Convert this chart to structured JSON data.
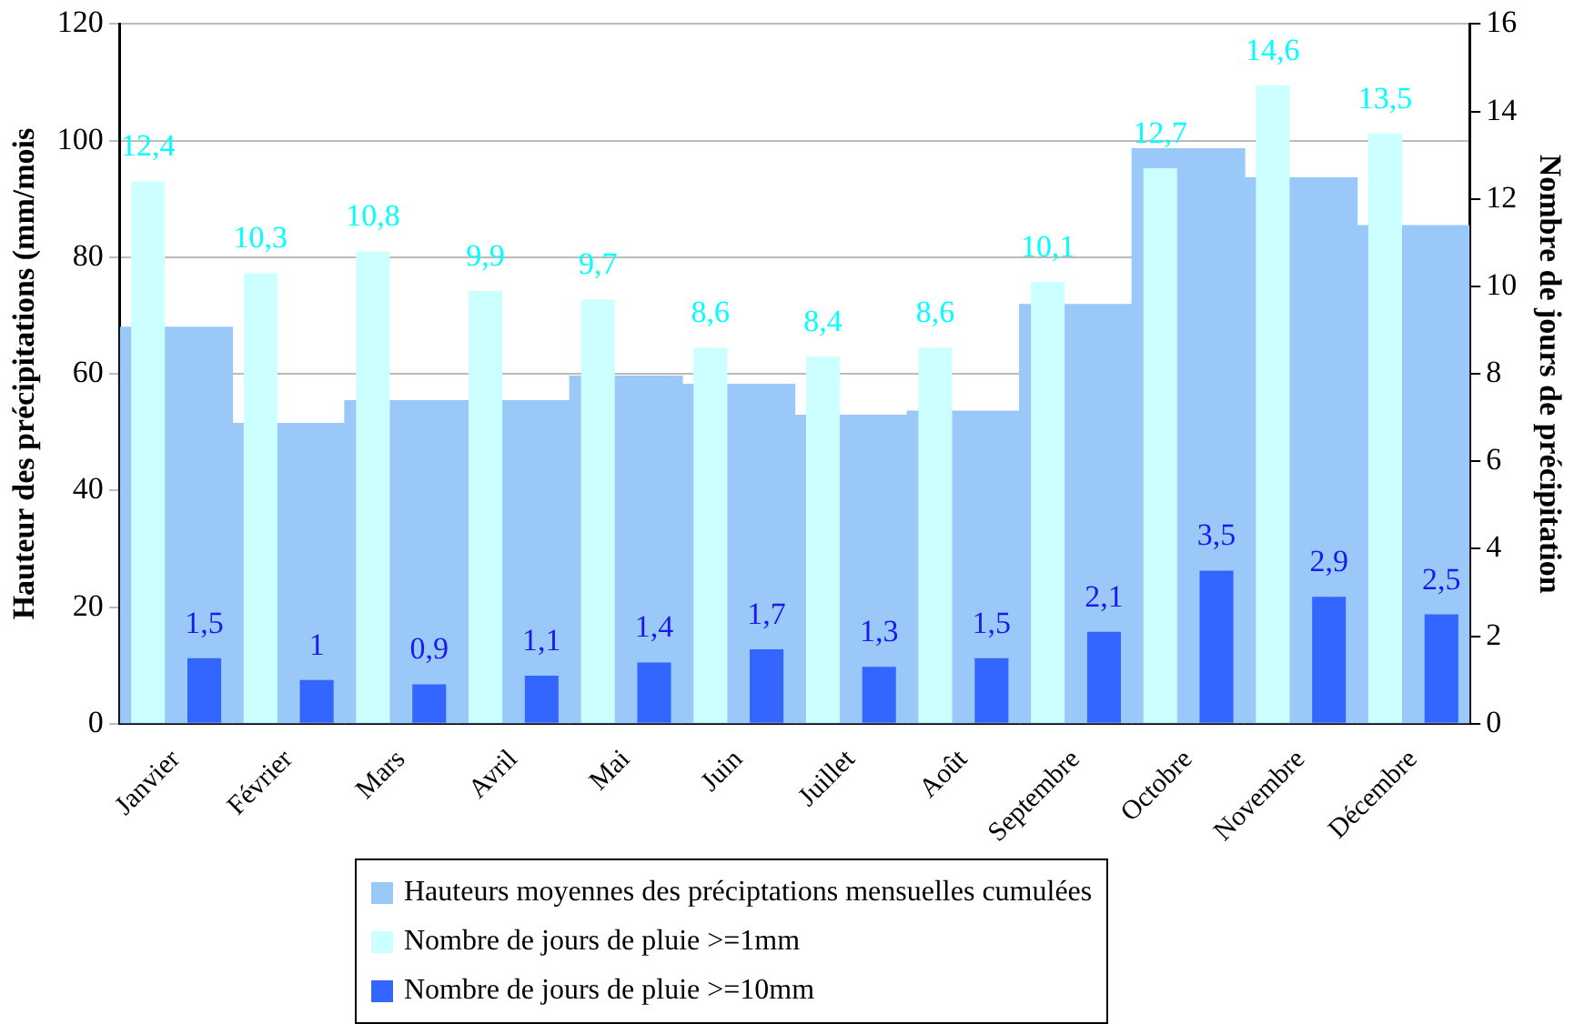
{
  "chart_data": {
    "type": "bar",
    "ylabel": "Hauteur des précipitations (mm/mois",
    "y2label": "Nombre de jours de précipitation",
    "categories": [
      "Janvier",
      "Février",
      "Mars",
      "Avril",
      "Mai",
      "Juin",
      "Juillet",
      "Août",
      "Septembre",
      "Octobre",
      "Novembre",
      "Décembre"
    ],
    "series": [
      {
        "name": "Hauteurs moyennes des préciptations mensuelles cumulées",
        "color": "#99c8f9",
        "values": [
          68,
          51.5,
          55.4,
          55.4,
          59.6,
          58.2,
          52.9,
          53.6,
          71.9,
          98.6,
          93.6,
          85.4
        ]
      },
      {
        "name": "Nombre de jours de pluie >=1mm",
        "color": "#ccffff",
        "axis": "y2",
        "values": [
          12.4,
          10.3,
          10.8,
          9.9,
          9.7,
          8.6,
          8.4,
          8.6,
          10.1,
          12.7,
          14.6,
          13.5
        ],
        "value_labels": [
          "12,4",
          "10,3",
          "10,8",
          "9,9",
          "9,7",
          "8,6",
          "8,4",
          "8,6",
          "10,1",
          "12,7",
          "14,6",
          "13,5"
        ]
      },
      {
        "name": "Nombre de jours de pluie >=10mm",
        "color": "#3366ff",
        "axis": "y2",
        "values": [
          1.5,
          1,
          0.9,
          1.1,
          1.4,
          1.7,
          1.3,
          1.5,
          2.1,
          3.5,
          2.9,
          2.5
        ],
        "value_labels": [
          "1,5",
          "1",
          "0,9",
          "1,1",
          "1,4",
          "1,7",
          "1,3",
          "1,5",
          "2,1",
          "3,5",
          "2,9",
          "2,5"
        ]
      }
    ],
    "ylim": [
      0,
      120
    ],
    "yticks": [
      0,
      20,
      40,
      60,
      80,
      100,
      120
    ],
    "y2lim": [
      0,
      16
    ],
    "y2ticks": [
      0,
      2,
      4,
      6,
      8,
      10,
      12,
      14,
      16
    ],
    "grid": "y",
    "legend": "bottom"
  }
}
